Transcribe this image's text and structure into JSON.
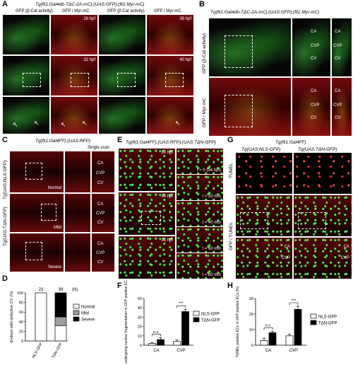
{
  "panelA": {
    "label": "A",
    "title": "Tg(fli1:Gal4db-TΔC-2A-mC);(UAS:GFP);(fli1:Myr-mC)",
    "col1": "GFP (β-Cat activity)",
    "col2": "GFP / Myr-mC",
    "col3": "GFP (β-Cat activity)",
    "col4": "GFP / Myr-mC",
    "t28": "28 hpf",
    "t32": "32 hpf",
    "t36": "36 hpf",
    "t40": "40 hpf"
  },
  "panelB": {
    "label": "B",
    "title": "Tg(fli1:Gal4db-TΔC-2A-mC);(UAS:GFP);(fli1:Myr-mC)",
    "row1": "GFP (β-Cat activity)",
    "row2": "GFP / Myr-mC",
    "ca": "CA",
    "cvp": "CVP",
    "cv": "CV"
  },
  "panelC": {
    "label": "C",
    "title": "Tg(fli1:Gal4FF);(UAS:RFP)",
    "scan": "Single scan",
    "row1": "Tg(UAS:NLS-GFP)",
    "row2": "Tg(UAS:TΔN-GFP)",
    "normal": "Normal",
    "mild": "Mild",
    "severe": "Severe",
    "ca": "CA",
    "cvp": "CVP",
    "cv": "CV"
  },
  "panelD": {
    "label": "D",
    "n_left": "23",
    "n_right": "39",
    "n_unit": "(N)",
    "legend": [
      "Normal",
      "Mild",
      "Severe"
    ]
  },
  "panelE": {
    "label": "E",
    "title": "Tg(fli1:Gal4FF);(UAS:RFP);(UAS:TΔN-GFP)",
    "t30": "30 hpf",
    "t34": "34 hpf",
    "t38": "38 hpf",
    "tt0": "t = 0 (34 hpf)",
    "tt20": "t = 20 min",
    "tt40": "t = 40 min",
    "tt60": "t = 60 min",
    "tt80": "t = 80 min"
  },
  "panelF": {
    "label": "F",
    "legend": [
      "NLS-GFP",
      "TΔN-GFP"
    ],
    "ns": "n.s.",
    "sig": "***"
  },
  "panelG": {
    "label": "G",
    "title": "Tg(fli1:Gal4FF)",
    "col1": "Tg(UAS:NLS-GFP)",
    "col2": "Tg(UAS:TΔN-GFP)",
    "row1": "TUNEL",
    "row2": "GFP / TUNEL",
    "ca": "CA",
    "cvp": "CVP"
  },
  "panelH": {
    "label": "H",
    "legend": [
      "NLS-GFP",
      "TΔN-GFP"
    ],
    "ns": "n.s.",
    "sig": "***"
  },
  "chart_data": [
    {
      "type": "bar",
      "panel": "D",
      "categories": [
        "NLS-GFP",
        "TΔN-GFP"
      ],
      "series": [
        {
          "name": "Normal",
          "values": [
            100,
            32
          ]
        },
        {
          "name": "Mild",
          "values": [
            0,
            18
          ]
        },
        {
          "name": "Severe",
          "values": [
            0,
            50
          ]
        }
      ],
      "ylabel": "Embryo with defective CV (%)",
      "ylim": [
        0,
        100
      ],
      "yticks": [
        0,
        20,
        40,
        60,
        80,
        100
      ],
      "stacked": true,
      "colors": {
        "Normal": "#ffffff",
        "Mild": "#9e9e9e",
        "Severe": "#000000"
      }
    },
    {
      "type": "bar",
      "panel": "F",
      "categories": [
        "CA",
        "CVP"
      ],
      "series": [
        {
          "name": "NLS-GFP",
          "values": [
            2,
            4
          ],
          "errors": [
            0.8,
            1.5
          ]
        },
        {
          "name": "TΔN-GFP",
          "values": [
            6,
            36
          ],
          "errors": [
            2,
            2.5
          ]
        }
      ],
      "ylabel": "ECs undergoing nuclear fragmentation in GFP positive ECs (%)",
      "ylim": [
        0,
        50
      ],
      "yticks": [
        0,
        10,
        20,
        30,
        40,
        50
      ],
      "colors": {
        "NLS-GFP": "#ffffff",
        "TΔN-GFP": "#000000"
      }
    },
    {
      "type": "bar",
      "panel": "H",
      "categories": [
        "CA",
        "CVP"
      ],
      "series": [
        {
          "name": "NLS-GFP",
          "values": [
            3,
            6
          ],
          "errors": [
            1.5,
            1
          ]
        },
        {
          "name": "TΔN-GFP",
          "values": [
            8,
            23
          ],
          "errors": [
            1,
            2
          ]
        }
      ],
      "ylabel": "TUNEL positive ECs in GFP positive ECs (%)",
      "ylim": [
        0,
        30
      ],
      "yticks": [
        0,
        10,
        20,
        30
      ],
      "colors": {
        "NLS-GFP": "#ffffff",
        "TΔN-GFP": "#000000"
      }
    }
  ]
}
